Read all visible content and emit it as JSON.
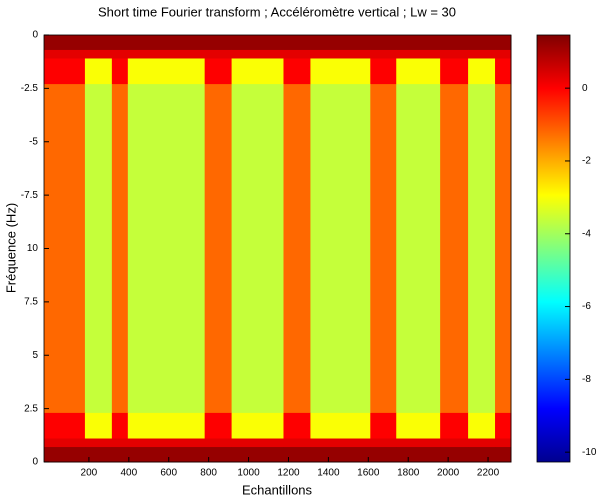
{
  "chart_data": {
    "type": "heatmap",
    "title": "Short time Fourier transform ; Accéléromètre vertical ; Lw = 30",
    "xlabel": "Echantillons",
    "ylabel": "Fréquence (Hz)",
    "xlim": [
      -25,
      2315
    ],
    "xticks": [
      200,
      400,
      600,
      800,
      1000,
      1200,
      1400,
      1600,
      1800,
      2000,
      2200
    ],
    "ylim": [
      0,
      20
    ],
    "y_reversed": true,
    "yticks": [
      0,
      {
        "value": 2.5,
        "label": "-2.5"
      },
      {
        "value": 5,
        "label": "-5"
      },
      {
        "value": 7.5,
        "label": "-7.5"
      },
      {
        "value": 10,
        "label": "10"
      },
      {
        "value": 12.5,
        "label": "7.5"
      },
      {
        "value": 15,
        "label": "5"
      },
      {
        "value": 17.5,
        "label": "2.5"
      },
      {
        "value": 20,
        "label": "0"
      }
    ],
    "x_edges": [
      -25,
      180,
      315,
      395,
      780,
      915,
      1175,
      1310,
      1610,
      1740,
      1960,
      2100,
      2235,
      2315
    ],
    "y_edges": [
      0,
      0.7,
      1.1,
      2.3,
      17.7,
      18.9,
      19.3,
      20
    ],
    "z": [
      [
        1.2,
        1.2,
        1.2,
        1.2,
        1.2,
        1.2,
        1.2,
        1.2,
        1.2,
        1.2,
        1.2,
        1.2,
        1.2
      ],
      [
        0.3,
        0.3,
        0.3,
        0.3,
        0.3,
        0.3,
        0.3,
        0.3,
        0.3,
        0.3,
        0.3,
        0.3,
        0.3
      ],
      [
        0,
        -3,
        0,
        -3,
        0,
        -3,
        0,
        -3,
        0,
        -3,
        0,
        -3,
        0
      ],
      [
        -1.2,
        -3.6,
        -1.2,
        -3.6,
        -1.2,
        -3.6,
        -1.2,
        -3.6,
        -1.2,
        -3.6,
        -1.2,
        -3.6,
        -1.2
      ],
      [
        0,
        -3,
        0,
        -3,
        0,
        -3,
        0,
        -3,
        0,
        -3,
        0,
        -3,
        0
      ],
      [
        0.3,
        0.3,
        0.3,
        0.3,
        0.3,
        0.3,
        0.3,
        0.3,
        0.3,
        0.3,
        0.3,
        0.3,
        0.3
      ],
      [
        1.2,
        1.2,
        1.2,
        1.2,
        1.2,
        1.2,
        1.2,
        1.2,
        1.2,
        1.2,
        1.2,
        1.2,
        1.2
      ]
    ],
    "colormap": "jet",
    "clim": [
      -10.27,
      1.46
    ],
    "cticks": [
      0,
      -2,
      -4,
      -6,
      -8,
      -10
    ]
  }
}
